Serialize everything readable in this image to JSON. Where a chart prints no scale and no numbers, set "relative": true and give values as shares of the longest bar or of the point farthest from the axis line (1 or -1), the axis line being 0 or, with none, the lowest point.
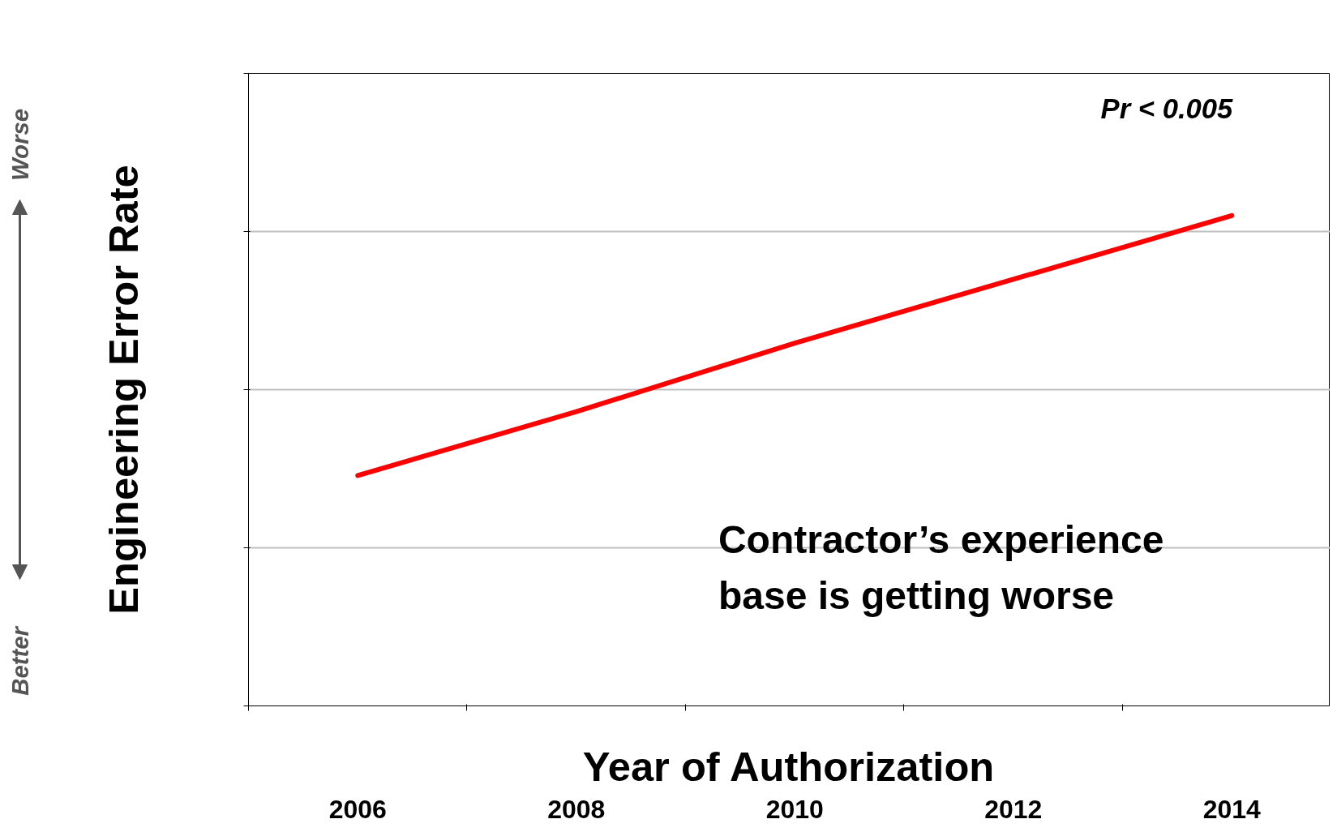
{
  "chart_data": {
    "type": "line",
    "relative": true,
    "xlabel": "Year of Authorization",
    "ylabel": "Engineering Error Rate",
    "categories": [
      "2006",
      "2008",
      "2010",
      "2012",
      "2014"
    ],
    "series": [
      {
        "color": "#ff0000",
        "values": [
          0.47,
          0.6,
          0.74,
          0.87,
          1.0
        ]
      }
    ],
    "grid": "y",
    "marker": "none",
    "line_style": "solid",
    "annotations": [
      "Pr < 0.005",
      "Contractor’s experience base is getting worse",
      "Worse",
      "Better"
    ]
  }
}
